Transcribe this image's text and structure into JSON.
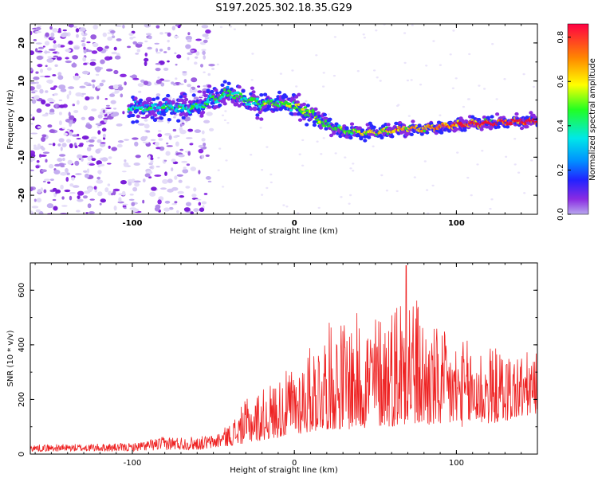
{
  "title": "S197.2025.302.18.35.G29",
  "chart_data": [
    {
      "type": "heatmap",
      "description_of_band": "signal band in frequency vs height",
      "xlabel": "Height of straight line (km)",
      "ylabel": "Frequency (Hz)",
      "xlim": [
        -163,
        150
      ],
      "ylim": [
        -25,
        25
      ],
      "xticks": [
        -100,
        0,
        100
      ],
      "xtick_labels": [
        "-100",
        "0",
        "100"
      ],
      "yticks": [
        20,
        10,
        0,
        -10,
        -20
      ],
      "ytick_labels": [
        "20",
        "10",
        "0",
        "-10",
        "-20"
      ],
      "band_center": {
        "x": [
          -100,
          -90,
          -80,
          -70,
          -60,
          -50,
          -40,
          -30,
          -20,
          -10,
          0,
          10,
          20,
          30,
          40,
          50,
          60,
          70,
          80,
          90,
          100,
          110,
          120,
          130,
          140,
          150
        ],
        "y": [
          3,
          3,
          3,
          3,
          3,
          5.5,
          7,
          5,
          4,
          4,
          3.5,
          1.5,
          -1.5,
          -3,
          -3.5,
          -3.5,
          -3,
          -2.5,
          -2.5,
          -2,
          -1.5,
          -1.2,
          -1,
          -0.8,
          -0.6,
          -0.5
        ]
      },
      "colorbar": {
        "label": "Normalized spectral amplitude",
        "range": [
          0,
          0.86
        ],
        "ticks": [
          0.0,
          0.2,
          0.4,
          0.6,
          0.8
        ],
        "tick_labels": [
          "0.0",
          "0.2",
          "0.4",
          "0.6",
          "0.8"
        ]
      }
    },
    {
      "type": "line",
      "xlabel": "Height of straight line (km)",
      "ylabel": "SNR (10 * v/v)",
      "xlim": [
        -163,
        150
      ],
      "ylim": [
        0,
        700
      ],
      "xticks": [
        -100,
        0,
        100
      ],
      "xtick_labels": [
        "-100",
        "0",
        "100"
      ],
      "yticks": [
        0,
        200,
        400,
        600
      ],
      "ytick_labels": [
        "0",
        "200",
        "400",
        "600"
      ],
      "color": "#ee2222",
      "envelope": {
        "x": [
          -163,
          -100,
          -80,
          -60,
          -50,
          -40,
          -30,
          -20,
          -10,
          0,
          10,
          20,
          30,
          40,
          50,
          60,
          70,
          80,
          90,
          100,
          110,
          120,
          130,
          140,
          150
        ],
        "low": [
          10,
          10,
          15,
          15,
          20,
          30,
          40,
          50,
          60,
          70,
          80,
          90,
          90,
          90,
          100,
          100,
          100,
          100,
          100,
          100,
          100,
          110,
          120,
          130,
          150
        ],
        "high": [
          35,
          40,
          65,
          65,
          70,
          110,
          200,
          240,
          280,
          330,
          400,
          480,
          500,
          520,
          520,
          560,
          690,
          500,
          460,
          420,
          420,
          400,
          380,
          380,
          370
        ]
      }
    }
  ]
}
